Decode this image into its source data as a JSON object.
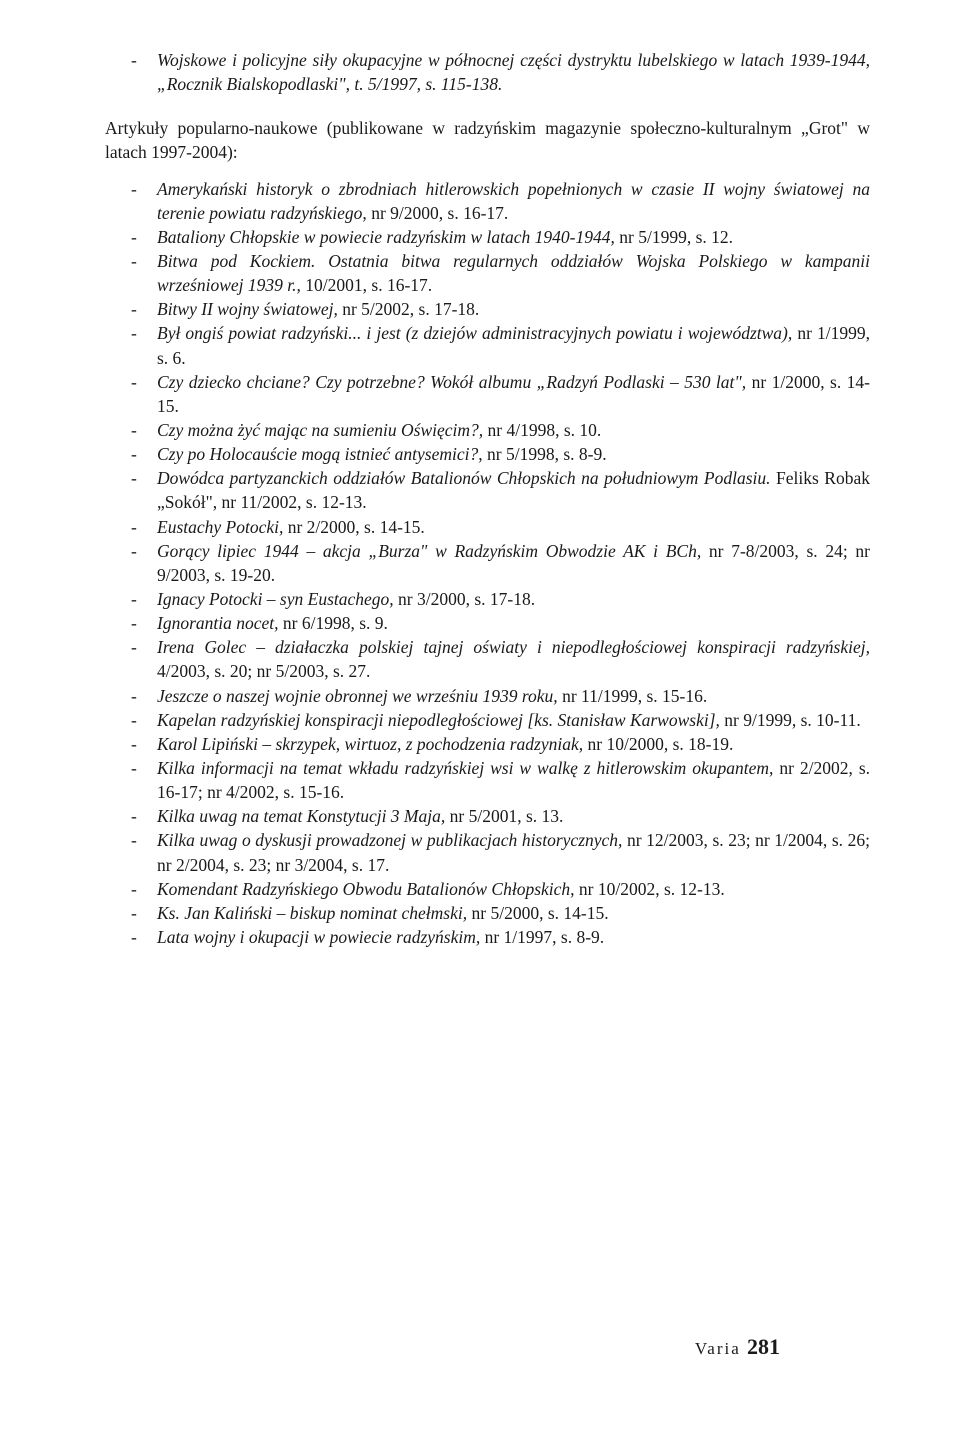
{
  "intro": {
    "text": "Wojskowe i policyjne siły okupacyjne w północnej części dystryktu lubelskiego w latach 1939-1944, „Rocznik Bialskopodlaski\", t. 5/1997, s. 115-138."
  },
  "section_intro": "Artykuły popularno-naukowe (publikowane w radzyńskim magazynie społeczno-kulturalnym „Grot\" w latach 1997-2004):",
  "items": [
    {
      "it": "Amerykański historyk o zbrodniach hitlerowskich popełnionych w czasie II wojny światowej na terenie powiatu radzyńskiego,",
      "rest": " nr 9/2000, s. 16-17."
    },
    {
      "it": "Bataliony Chłopskie w powiecie radzyńskim w latach 1940-1944,",
      "rest": " nr 5/1999, s. 12."
    },
    {
      "it": "Bitwa pod Kockiem. Ostatnia bitwa regularnych oddziałów Wojska Polskiego w kampanii wrześniowej 1939 r.,",
      "rest": " 10/2001, s. 16-17."
    },
    {
      "it": "Bitwy II wojny światowej,",
      "rest": " nr 5/2002, s. 17-18."
    },
    {
      "it": "Był ongiś powiat radzyński... i jest (z dziejów administracyjnych powiatu i województwa),",
      "rest": " nr 1/1999, s. 6."
    },
    {
      "it": "Czy dziecko chciane? Czy potrzebne? Wokół albumu „Radzyń Podlaski – 530 lat\",",
      "rest": " nr 1/2000, s. 14-15."
    },
    {
      "it": "Czy można żyć mając na sumieniu Oświęcim?,",
      "rest": " nr 4/1998, s. 10."
    },
    {
      "it": "Czy po Holocauście mogą istnieć antysemici?,",
      "rest": " nr 5/1998, s. 8-9."
    },
    {
      "it": "Dowódca partyzanckich oddziałów Batalionów Chłopskich na południowym Podlasiu.",
      "rest": " Feliks Robak „Sokół\", nr 11/2002, s. 12-13."
    },
    {
      "it": "Eustachy Potocki,",
      "rest": " nr 2/2000, s. 14-15."
    },
    {
      "it": "Gorący lipiec 1944 – akcja „Burza\" w Radzyńskim Obwodzie AK i BCh,",
      "rest": " nr 7-8/2003, s. 24; nr 9/2003, s. 19-20."
    },
    {
      "it": "Ignacy Potocki – syn Eustachego,",
      "rest": " nr 3/2000, s. 17-18."
    },
    {
      "it": "Ignorantia nocet,",
      "rest": " nr 6/1998, s. 9."
    },
    {
      "it": "Irena Golec – działaczka polskiej tajnej oświaty i niepodległościowej konspiracji radzyńskiej,",
      "rest": " 4/2003, s. 20; nr 5/2003, s. 27."
    },
    {
      "it": "Jeszcze o naszej wojnie obronnej we wrześniu 1939 roku,",
      "rest": " nr 11/1999, s. 15-16."
    },
    {
      "it": "Kapelan radzyńskiej konspiracji niepodległościowej [ks. Stanisław Karwowski],",
      "rest": " nr 9/1999, s. 10-11."
    },
    {
      "it": "Karol Lipiński – skrzypek, wirtuoz, z pochodzenia radzyniak,",
      "rest": " nr 10/2000, s. 18-19."
    },
    {
      "it": "Kilka informacji na temat wkładu radzyńskiej wsi w walkę z hitlerowskim okupantem,",
      "rest": " nr 2/2002, s. 16-17; nr 4/2002, s. 15-16."
    },
    {
      "it": "Kilka uwag na temat Konstytucji 3 Maja,",
      "rest": " nr 5/2001, s. 13."
    },
    {
      "it": "Kilka uwag o dyskusji prowadzonej w publikacjach historycznych,",
      "rest": " nr 12/2003, s. 23; nr 1/2004, s. 26; nr 2/2004, s. 23; nr 3/2004, s. 17."
    },
    {
      "it": "Komendant Radzyńskiego Obwodu Batalionów Chłopskich,",
      "rest": " nr 10/2002, s. 12-13."
    },
    {
      "it": "Ks. Jan Kaliński – biskup nominat chełmski,",
      "rest": " nr 5/2000, s. 14-15."
    },
    {
      "it": "Lata wojny i okupacji w powiecie radzyńskim,",
      "rest": " nr 1/1997, s. 8-9."
    }
  ],
  "footer": {
    "label": "Varia",
    "page": "281"
  }
}
